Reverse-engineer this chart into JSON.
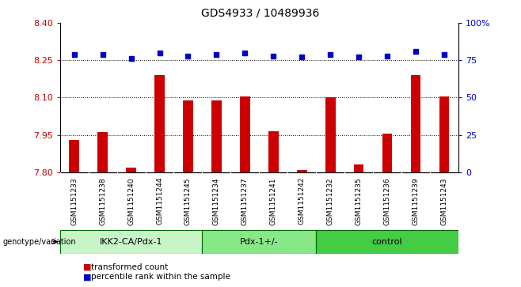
{
  "title": "GDS4933 / 10489936",
  "samples": [
    "GSM1151233",
    "GSM1151238",
    "GSM1151240",
    "GSM1151244",
    "GSM1151245",
    "GSM1151234",
    "GSM1151237",
    "GSM1151241",
    "GSM1151242",
    "GSM1151232",
    "GSM1151235",
    "GSM1151236",
    "GSM1151239",
    "GSM1151243"
  ],
  "bar_values": [
    7.93,
    7.96,
    7.82,
    8.19,
    8.09,
    8.09,
    8.105,
    7.965,
    7.81,
    8.1,
    7.83,
    7.955,
    8.19,
    8.105
  ],
  "dot_values": [
    79,
    79,
    76,
    80,
    78,
    79,
    80,
    78,
    77,
    79,
    77,
    78,
    81,
    79
  ],
  "groups": [
    {
      "label": "IKK2-CA/Pdx-1",
      "start": 0,
      "end": 5,
      "color": "#c8f5c8"
    },
    {
      "label": "Pdx-1+/-",
      "start": 5,
      "end": 9,
      "color": "#88e888"
    },
    {
      "label": "control",
      "start": 9,
      "end": 14,
      "color": "#44cc44"
    }
  ],
  "ylim_left": [
    7.8,
    8.4
  ],
  "ylim_right": [
    0,
    100
  ],
  "yticks_left": [
    7.8,
    7.95,
    8.1,
    8.25,
    8.4
  ],
  "yticks_right": [
    0,
    25,
    50,
    75,
    100
  ],
  "ytick_labels_right": [
    "0",
    "25",
    "50",
    "75",
    "100%"
  ],
  "hlines": [
    7.95,
    8.1,
    8.25
  ],
  "bar_color": "#cc0000",
  "dot_color": "#0000cc",
  "bar_bottom": 7.8,
  "ylabel_left_color": "#cc0000",
  "ylabel_right_color": "#0000cc",
  "bar_width": 0.35,
  "sample_bg_color": "#d8d8d8",
  "group_border_color": "#006600"
}
